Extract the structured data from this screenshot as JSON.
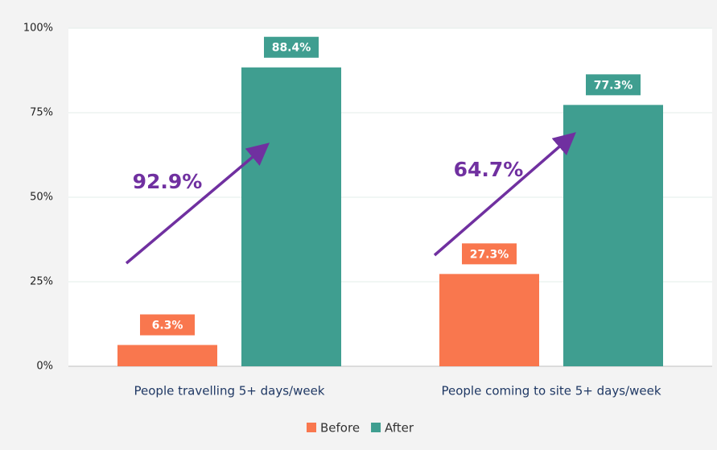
{
  "chart_data": {
    "type": "bar",
    "categories": [
      "People travelling 5+ days/week",
      "People coming to site 5+ days/week"
    ],
    "series": [
      {
        "name": "Before",
        "color": "#f9774e",
        "values": [
          6.3,
          27.3
        ],
        "value_labels": [
          "6.3%",
          "27.3%"
        ]
      },
      {
        "name": "After",
        "color": "#3f9e90",
        "values": [
          88.4,
          77.3
        ],
        "value_labels": [
          "88.4%",
          "77.3%"
        ]
      }
    ],
    "ylim": [
      0,
      100
    ],
    "yticks": [
      {
        "value": 0,
        "label": "0%"
      },
      {
        "value": 25,
        "label": "25%"
      },
      {
        "value": 50,
        "label": "50%"
      },
      {
        "value": 75,
        "label": "75%"
      },
      {
        "value": 100,
        "label": "100%"
      }
    ],
    "grid": true,
    "legend": "bottom",
    "annotations": [
      "92.9%",
      "64.7%"
    ],
    "annotation_color": "#7030a0"
  }
}
